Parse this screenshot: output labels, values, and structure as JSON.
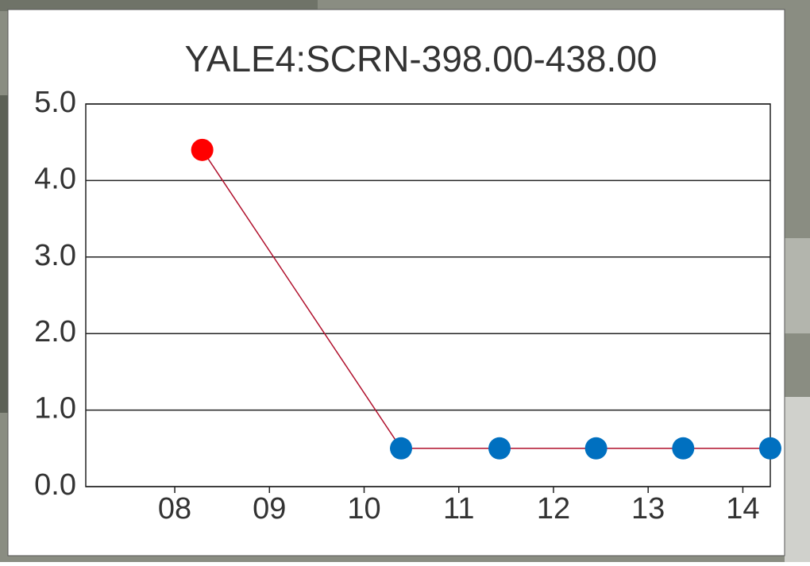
{
  "chart_data": {
    "type": "line",
    "title": "YALE4:SCRN-398.00-438.00",
    "x": [
      8.29,
      10.39,
      11.43,
      12.45,
      13.37,
      14.29
    ],
    "series": [
      {
        "color": "#b0102c",
        "point_colors": [
          "#ff0000",
          "#0070c0",
          "#0070c0",
          "#0070c0",
          "#0070c0",
          "#0070c0"
        ],
        "values": [
          4.4,
          0.5,
          0.5,
          0.5,
          0.5,
          0.5
        ]
      }
    ],
    "xlim": [
      7.06,
      14.29
    ],
    "xticks": [
      {
        "value": 8,
        "label": "08"
      },
      {
        "value": 9,
        "label": "09"
      },
      {
        "value": 10,
        "label": "10"
      },
      {
        "value": 11,
        "label": "11"
      },
      {
        "value": 12,
        "label": "12"
      },
      {
        "value": 13,
        "label": "13"
      },
      {
        "value": 14,
        "label": "14"
      }
    ],
    "ylim": [
      0,
      5
    ],
    "yticks": [
      {
        "value": 0,
        "label": "0.0"
      },
      {
        "value": 1,
        "label": "1.0"
      },
      {
        "value": 2,
        "label": "2.0"
      },
      {
        "value": 3,
        "label": "3.0"
      },
      {
        "value": 4,
        "label": "4.0"
      },
      {
        "value": 5,
        "label": "5.0"
      }
    ],
    "grid": true
  }
}
